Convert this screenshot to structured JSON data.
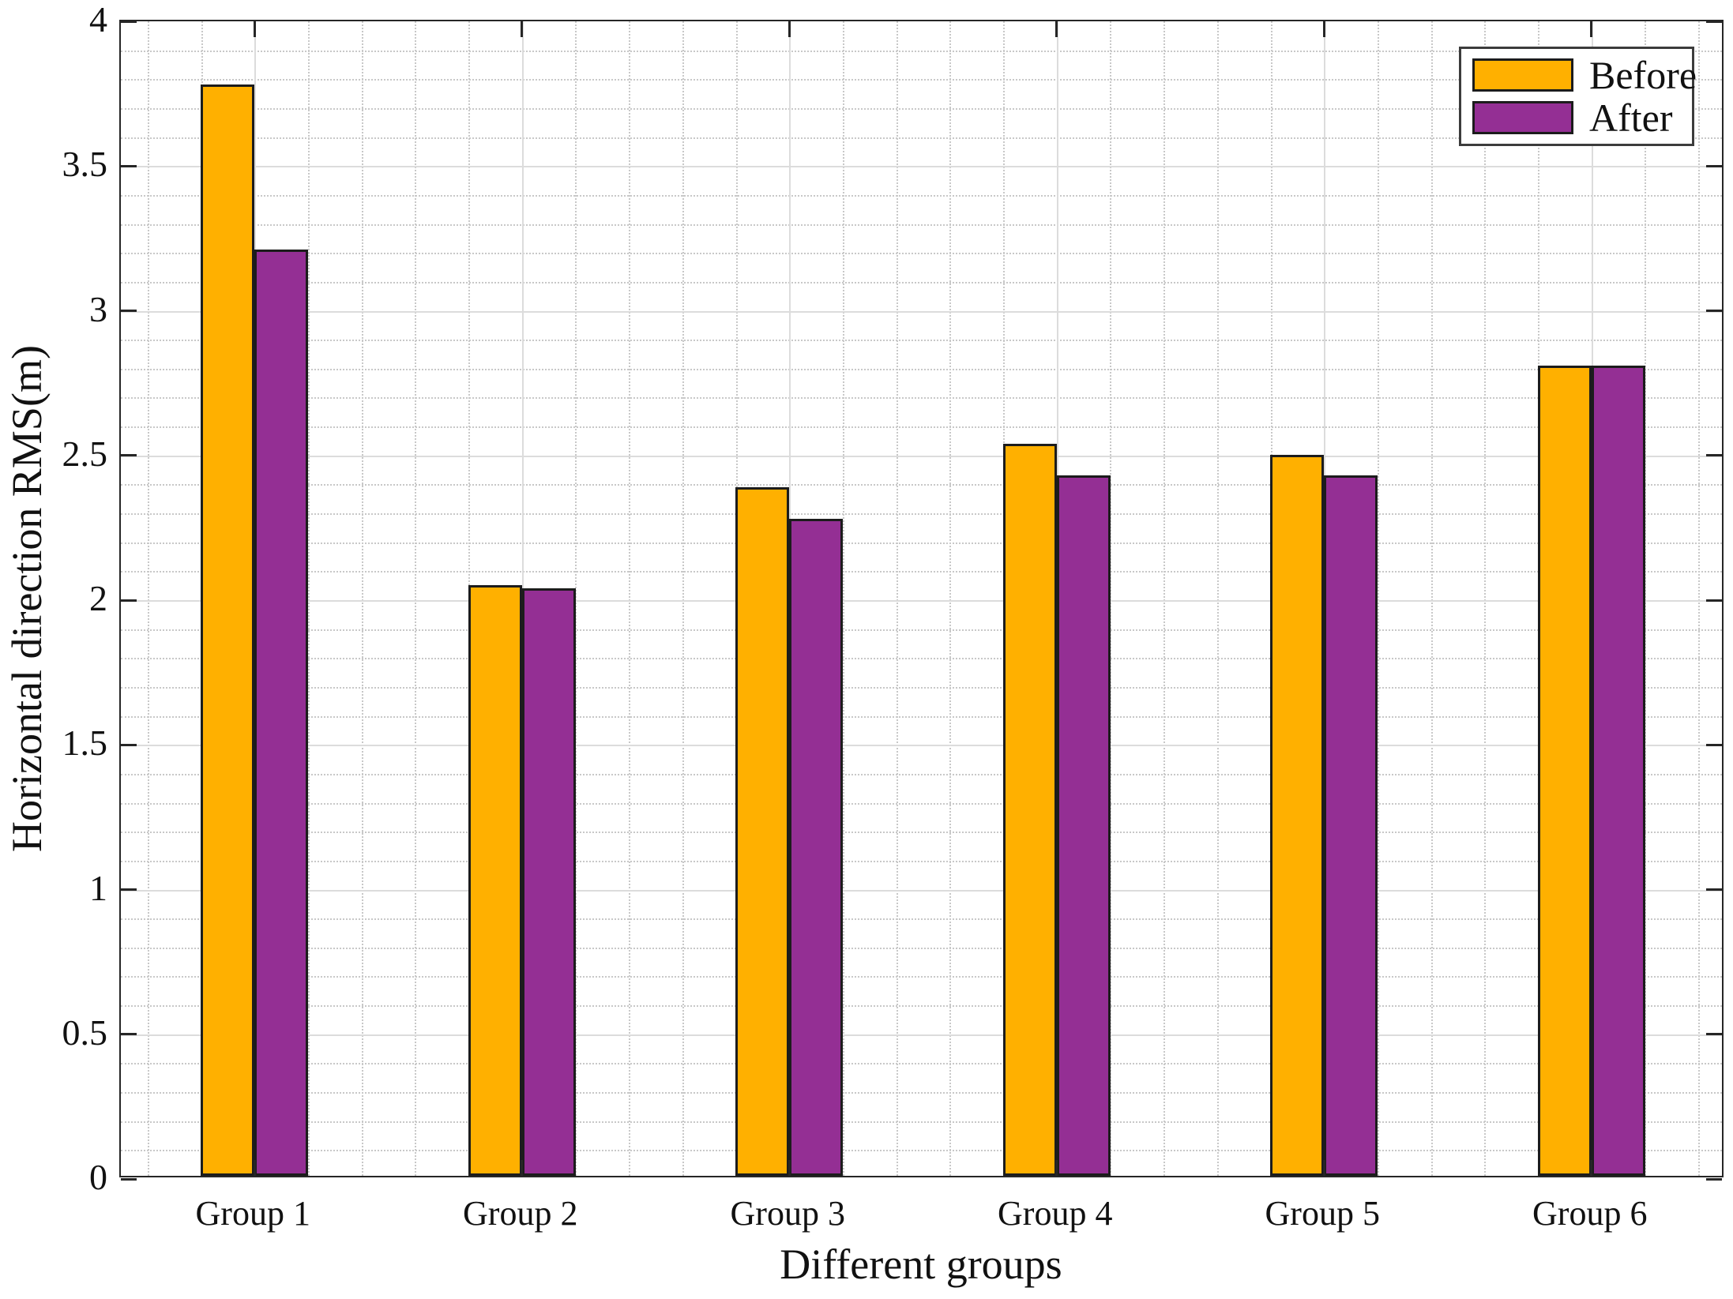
{
  "figure_title": "",
  "axes": {
    "xlabel": "Different groups",
    "ylabel": "Horizontal direction RMS(m)"
  },
  "legend": {
    "position": "top-right",
    "items": [
      {
        "label": "Before",
        "color": "#FFB000"
      },
      {
        "label": "After",
        "color": "#942F94"
      }
    ]
  },
  "colors": {
    "before_bar": "#FFB000",
    "after_bar": "#942F94",
    "bar_edge": "#1c1c1c",
    "axis_box": "#262626",
    "grid_major": "#dcdcdc",
    "grid_minor": "#c8c8c8",
    "background": "#ffffff",
    "text": "#111111"
  },
  "chart_data": {
    "type": "bar",
    "title": "",
    "categories": [
      "Group 1",
      "Group 2",
      "Group 3",
      "Group 4",
      "Group 5",
      "Group 6"
    ],
    "series": [
      {
        "name": "Before",
        "color": "#FFB000",
        "values": [
          3.77,
          2.04,
          2.38,
          2.53,
          2.49,
          2.8
        ]
      },
      {
        "name": "After",
        "color": "#942F94",
        "values": [
          3.2,
          2.03,
          2.27,
          2.42,
          2.42,
          2.8
        ]
      }
    ],
    "xlabel": "Different groups",
    "ylabel": "Horizontal direction RMS(m)",
    "ylim": [
      0,
      4
    ],
    "yticks": [
      0,
      0.5,
      1,
      1.5,
      2,
      2.5,
      3,
      3.5,
      4
    ],
    "ytick_labels": [
      "0",
      "0.5",
      "1",
      "1.5",
      "2",
      "2.5",
      "3",
      "3.5",
      "4"
    ],
    "yminor_step": 0.1,
    "xminor_per_slot": 5,
    "grid": "major solid horizontal+vertical, minor dotted horizontal+vertical",
    "legend_position": "top-right",
    "bar_group_gap": 0,
    "tick_direction": "in"
  }
}
